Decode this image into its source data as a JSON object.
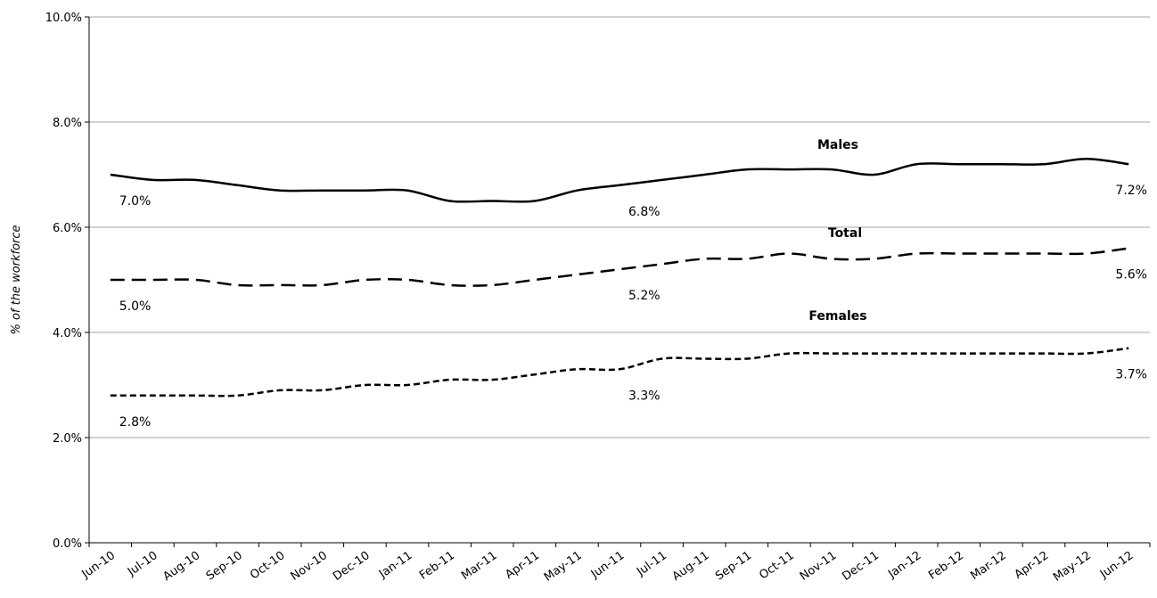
{
  "chart_data": {
    "type": "line",
    "y_label": "% of the workforce",
    "categories": [
      "Jun-10",
      "Jul-10",
      "Aug-10",
      "Sep-10",
      "Oct-10",
      "Nov-10",
      "Dec-10",
      "Jan-11",
      "Feb-11",
      "Mar-11",
      "Apr-11",
      "May-11",
      "Jun-11",
      "Jul-11",
      "Aug-11",
      "Sep-11",
      "Oct-11",
      "Nov-11",
      "Dec-11",
      "Jan-12",
      "Feb-12",
      "Mar-12",
      "Apr-12",
      "May-12",
      "Jun-12"
    ],
    "ylim": [
      0,
      10
    ],
    "yticks": [
      {
        "value": 0,
        "label": "0.0%"
      },
      {
        "value": 2,
        "label": "2.0%"
      },
      {
        "value": 4,
        "label": "4.0%"
      },
      {
        "value": 6,
        "label": "6.0%"
      },
      {
        "value": 8,
        "label": "8.0%"
      },
      {
        "value": 10,
        "label": "10.0%"
      }
    ],
    "grid": true,
    "series": [
      {
        "name": "Males",
        "color": "#000000",
        "dash": "solid",
        "values": [
          7.0,
          6.9,
          6.9,
          6.8,
          6.7,
          6.7,
          6.7,
          6.7,
          6.5,
          6.5,
          6.5,
          6.7,
          6.8,
          6.9,
          7.0,
          7.1,
          7.1,
          7.1,
          7.0,
          7.2,
          7.2,
          7.2,
          7.2,
          7.3,
          7.2
        ],
        "value_labels": [
          "7.0%",
          null,
          null,
          null,
          null,
          null,
          null,
          null,
          null,
          null,
          null,
          null,
          "6.8%",
          null,
          null,
          null,
          null,
          null,
          null,
          null,
          null,
          null,
          null,
          null,
          "7.2%"
        ]
      },
      {
        "name": "Total",
        "color": "#000000",
        "dash": "long",
        "values": [
          5.0,
          5.0,
          5.0,
          4.9,
          4.9,
          4.9,
          5.0,
          5.0,
          4.9,
          4.9,
          5.0,
          5.1,
          5.2,
          5.3,
          5.4,
          5.4,
          5.5,
          5.4,
          5.4,
          5.5,
          5.5,
          5.5,
          5.5,
          5.5,
          5.6
        ],
        "value_labels": [
          "5.0%",
          null,
          null,
          null,
          null,
          null,
          null,
          null,
          null,
          null,
          null,
          null,
          "5.2%",
          null,
          null,
          null,
          null,
          null,
          null,
          null,
          null,
          null,
          null,
          null,
          "5.6%"
        ]
      },
      {
        "name": "Females",
        "color": "#000000",
        "dash": "short",
        "values": [
          2.8,
          2.8,
          2.8,
          2.8,
          2.9,
          2.9,
          3.0,
          3.0,
          3.1,
          3.1,
          3.2,
          3.3,
          3.3,
          3.5,
          3.5,
          3.5,
          3.6,
          3.6,
          3.6,
          3.6,
          3.6,
          3.6,
          3.6,
          3.6,
          3.7
        ],
        "value_labels": [
          "2.8%",
          null,
          null,
          null,
          null,
          null,
          null,
          null,
          null,
          null,
          null,
          null,
          "3.3%",
          null,
          null,
          null,
          null,
          null,
          null,
          null,
          null,
          null,
          null,
          null,
          "3.7%"
        ]
      }
    ]
  }
}
